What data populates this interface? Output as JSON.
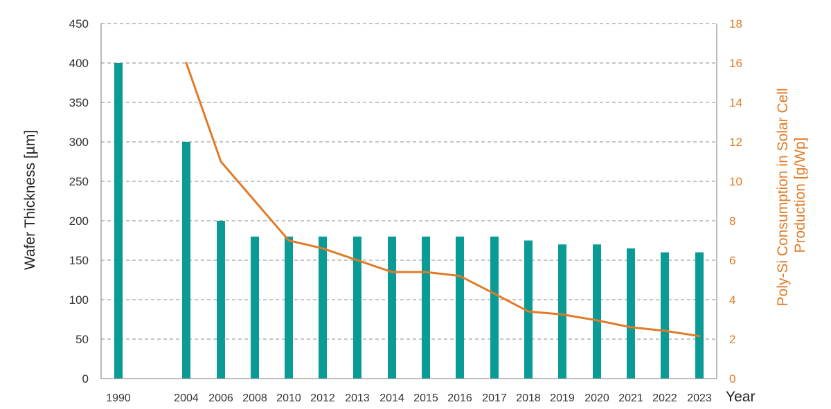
{
  "chart_data": {
    "type": "bar-line",
    "categories": [
      "1990",
      "2004",
      "2006",
      "2008",
      "2010",
      "2012",
      "2013",
      "2014",
      "2015",
      "2016",
      "2017",
      "2018",
      "2019",
      "2020",
      "2021",
      "2022",
      "2023"
    ],
    "series": [
      {
        "axis": "left",
        "kind": "bar",
        "color": "#0a9b96",
        "values": [
          400,
          300,
          200,
          180,
          180,
          180,
          180,
          180,
          180,
          180,
          180,
          175,
          170,
          170,
          165,
          160,
          160
        ]
      },
      {
        "axis": "right",
        "kind": "line",
        "color": "#e07b27",
        "values": [
          null,
          16,
          11,
          9,
          7,
          6.6,
          6,
          5.4,
          5.4,
          5.2,
          4.3,
          3.4,
          3.25,
          2.95,
          2.6,
          2.42,
          2.15
        ]
      }
    ],
    "xlabel": "Year",
    "ylabel": "Wafer Thickness [µm]",
    "ylabel_right": "Poly-Si Consumption in Solar Cell Production [g/Wp]",
    "ylabel_right_lines": [
      "Poly-Si Consumption in Solar Cell",
      "Production [g/Wp]"
    ],
    "ylim": [
      0,
      450
    ],
    "yticks": [
      0,
      50,
      100,
      150,
      200,
      250,
      300,
      350,
      400,
      450
    ],
    "ylim_right": [
      0,
      18
    ],
    "yticks_right": [
      0,
      2,
      4,
      6,
      8,
      10,
      12,
      14,
      16,
      18
    ],
    "grid": "horizontal-dashed",
    "right_axis_color": "#e07b27"
  }
}
